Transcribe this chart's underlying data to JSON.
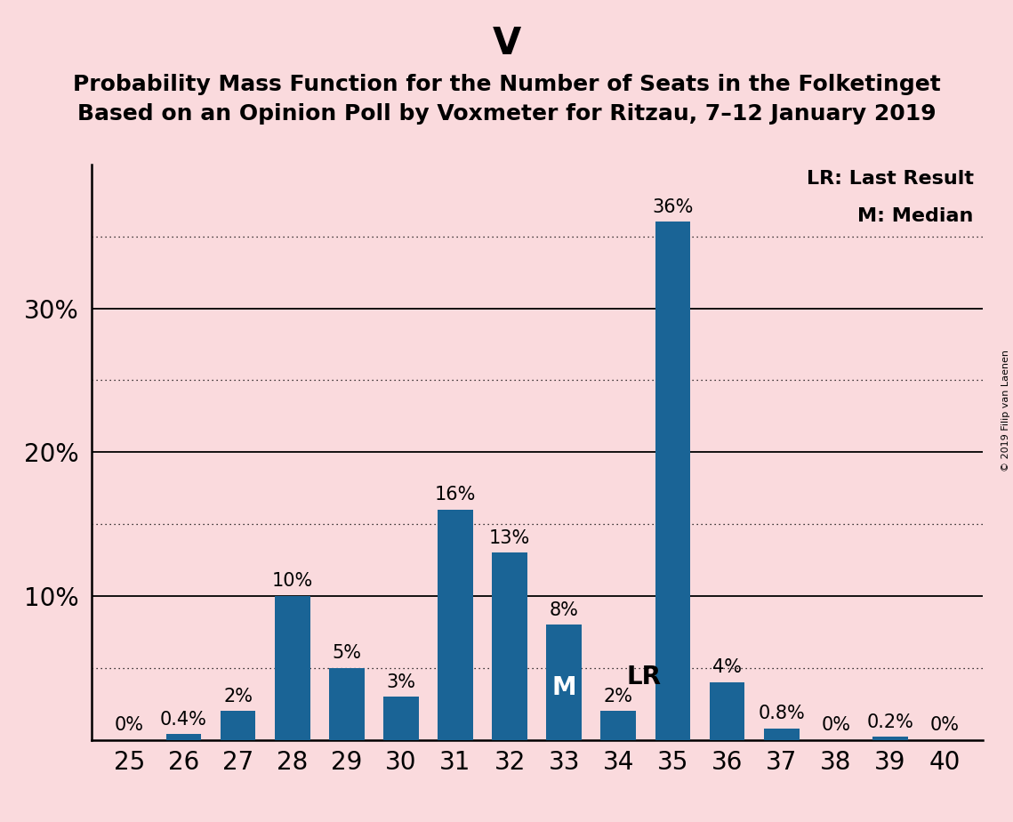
{
  "title_party": "V",
  "title_line1": "Probability Mass Function for the Number of Seats in the Folketinget",
  "title_line2": "Based on an Opinion Poll by Voxmeter for Ritzau, 7–12 January 2019",
  "copyright": "© 2019 Filip van Laenen",
  "categories": [
    25,
    26,
    27,
    28,
    29,
    30,
    31,
    32,
    33,
    34,
    35,
    36,
    37,
    38,
    39,
    40
  ],
  "values": [
    0,
    0.4,
    2,
    10,
    5,
    3,
    16,
    13,
    8,
    2,
    36,
    4,
    0.8,
    0,
    0.2,
    0
  ],
  "labels": [
    "0%",
    "0.4%",
    "2%",
    "10%",
    "5%",
    "3%",
    "16%",
    "13%",
    "8%",
    "2%",
    "36%",
    "4%",
    "0.8%",
    "0%",
    "0.2%",
    "0%"
  ],
  "bar_color": "#1a6496",
  "background_color": "#fadadd",
  "ylim": [
    0,
    40
  ],
  "ytick_solid": [
    10,
    20,
    30
  ],
  "ytick_dotted": [
    5,
    15,
    25,
    35
  ],
  "last_result_seat": 34,
  "median_seat": 33,
  "lr_label": "LR",
  "m_label": "M",
  "legend_lr": "LR: Last Result",
  "legend_m": "M: Median",
  "title_fontsize": 30,
  "subtitle_fontsize": 18,
  "tick_fontsize": 20,
  "annotation_fontsize": 15,
  "lr_m_fontsize": 20,
  "legend_fontsize": 16
}
